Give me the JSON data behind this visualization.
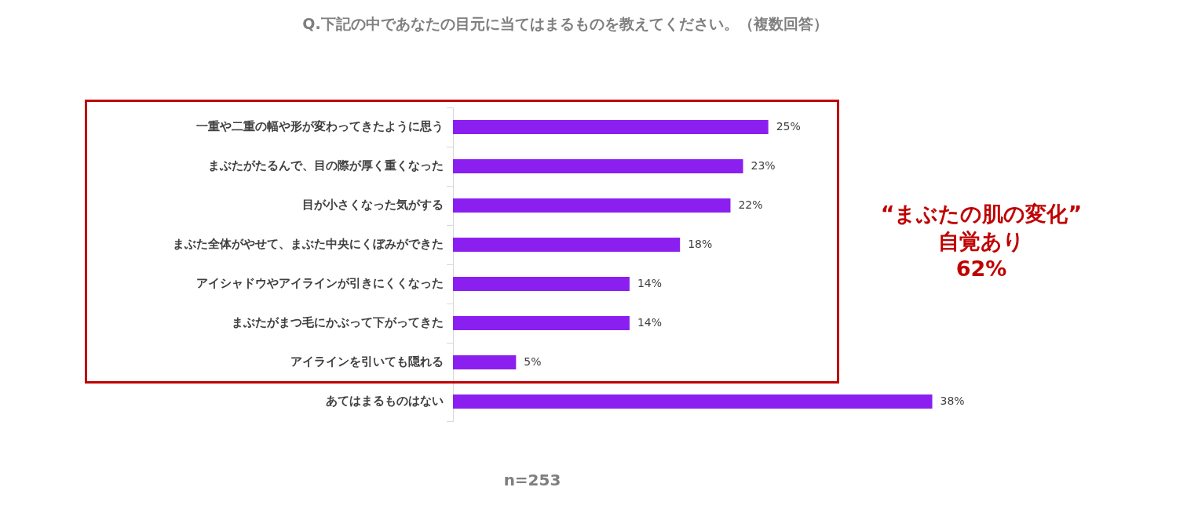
{
  "chart_data": {
    "type": "bar",
    "orientation": "horizontal",
    "title": "Q.下記の中であなたの目元に当てはまるものを教えてください。（複数回答）",
    "categories": [
      "一重や二重の幅や形が変わってきたように思う",
      "まぶたがたるんで、目の際が厚く重くなった",
      "目が小さくなった気がする",
      "まぶた全体がやせて、まぶた中央にくぼみができた",
      "アイシャドウやアイラインが引きにくくなった",
      "まぶたがまつ毛にかぶって下がってきた",
      "アイラインを引いても隠れる",
      "あてはまるものはない"
    ],
    "values": [
      25,
      23,
      22,
      18,
      14,
      14,
      5,
      38
    ],
    "value_labels": [
      "25%",
      "23%",
      "22%",
      "18%",
      "14%",
      "14%",
      "5%",
      "38%"
    ],
    "color": "#8b1ff0",
    "annotations": [
      "“まぶたの肌の変化”\n自覚あり\n62%",
      "n=253"
    ],
    "tick_labels": "y",
    "legend": false
  }
}
